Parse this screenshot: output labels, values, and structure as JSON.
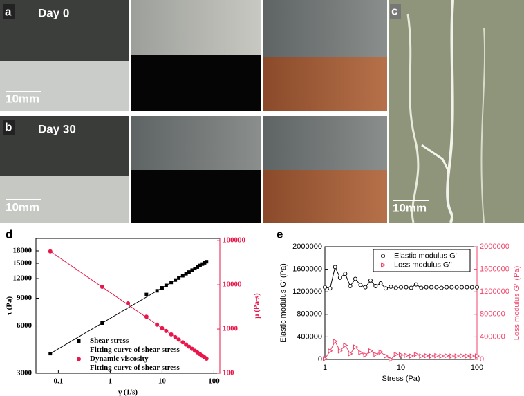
{
  "photos": {
    "a": {
      "letter": "a",
      "day": "Day 0",
      "scale": "10mm"
    },
    "b": {
      "letter": "b",
      "day": "Day 30",
      "scale": "10mm"
    },
    "c": {
      "letter": "c",
      "scale": "10mm"
    }
  },
  "chart_data": [
    {
      "type": "scatter",
      "panel_label": "d",
      "xlabel": "γ (1/s)",
      "ylabel": "τ (Pa)",
      "y2label": "μ (Pa·s)",
      "xscale": "log",
      "yscale": "log",
      "y2scale": "log",
      "xlim": [
        0.037,
        130
      ],
      "xticks": [
        0.1,
        1,
        10,
        100
      ],
      "ylim": [
        3000,
        21600
      ],
      "yticks": [
        3000,
        6000,
        9000,
        12000,
        15000,
        18000
      ],
      "y2lim": [
        100,
        112000
      ],
      "y2ticks": [
        100,
        1000,
        10000,
        100000
      ],
      "y2color": "#e8174a",
      "legend": "lower left",
      "series": [
        {
          "name": "Shear stress",
          "color": "#000000",
          "marker": "square",
          "line": false,
          "x": [
            0.07,
            0.7,
            2.2,
            5,
            8,
            10,
            12,
            15,
            18,
            21,
            25,
            29,
            33,
            38,
            43,
            48,
            54,
            60,
            66,
            72
          ],
          "values": [
            4000,
            6250,
            8300,
            9500,
            10030,
            10470,
            10850,
            11330,
            11740,
            12090,
            12510,
            12870,
            13200,
            13570,
            13900,
            14200,
            14530,
            14830,
            15100,
            15360
          ]
        },
        {
          "name": "Fitting curve of shear stress",
          "color": "#000000",
          "marker": "none",
          "line": true,
          "x": [
            0.07,
            72
          ],
          "values": [
            4000,
            15360
          ]
        },
        {
          "name": "Dynamic viscosity",
          "color": "#e8174a",
          "marker": "circle",
          "line": false,
          "axis": "y2",
          "x": [
            0.07,
            0.7,
            2.2,
            5,
            8,
            10,
            12,
            15,
            18,
            21,
            25,
            29,
            33,
            38,
            43,
            48,
            54,
            60,
            66,
            72
          ],
          "values": [
            57000,
            9000,
            3800,
            1900,
            1254,
            1047,
            904,
            755,
            652,
            576,
            500,
            444,
            400,
            357,
            323,
            296,
            269,
            247,
            229,
            213
          ]
        },
        {
          "name": "Fitting curve of shear stress",
          "color": "#e8174a",
          "marker": "none",
          "line": true,
          "axis": "y2",
          "x": [
            0.07,
            72
          ],
          "values": [
            57000,
            213
          ]
        }
      ]
    },
    {
      "type": "line",
      "panel_label": "e",
      "xlabel": "Stress (Pa)",
      "ylabel": "Elastic modulus G' (Pa)",
      "y2label": "Loss modulus G'' (Pa)",
      "xscale": "log",
      "xlim": [
        1,
        100
      ],
      "xticks": [
        1,
        10,
        100
      ],
      "ylim": [
        0,
        2000000
      ],
      "yticks": [
        0,
        400000,
        800000,
        1200000,
        1600000,
        2000000
      ],
      "y2lim": [
        0,
        2000000
      ],
      "y2ticks": [
        0,
        400000,
        800000,
        1200000,
        1600000,
        2000000
      ],
      "y2color": "#f0436a",
      "legend": "upper right",
      "x": [
        1,
        1.17,
        1.36,
        1.58,
        1.85,
        2.15,
        2.51,
        2.93,
        3.41,
        3.98,
        4.64,
        5.41,
        6.31,
        7.36,
        8.58,
        10,
        11.7,
        13.6,
        15.8,
        18.5,
        21.5,
        25.1,
        29.3,
        34.1,
        39.8,
        46.4,
        54.1,
        63.1,
        73.6,
        85.8,
        100
      ],
      "series": [
        {
          "name": "Elastic modulus G'",
          "color": "#000000",
          "marker": "open-circle",
          "line": true,
          "values": [
            1280000,
            1260000,
            1640000,
            1450000,
            1520000,
            1300000,
            1430000,
            1320000,
            1280000,
            1400000,
            1300000,
            1350000,
            1260000,
            1290000,
            1270000,
            1280000,
            1280000,
            1270000,
            1330000,
            1270000,
            1280000,
            1280000,
            1280000,
            1270000,
            1280000,
            1280000,
            1280000,
            1280000,
            1280000,
            1280000,
            1280000
          ]
        },
        {
          "name": "Loss modulus G''",
          "color": "#f0436a",
          "marker": "open-triangle",
          "line": true,
          "axis": "y2",
          "values": [
            10000,
            150000,
            320000,
            150000,
            250000,
            100000,
            220000,
            120000,
            80000,
            150000,
            90000,
            130000,
            60000,
            0,
            90000,
            80000,
            70000,
            60000,
            90000,
            60000,
            65000,
            60000,
            65000,
            60000,
            65000,
            60000,
            60000,
            65000,
            60000,
            60000,
            60000
          ]
        }
      ]
    }
  ]
}
